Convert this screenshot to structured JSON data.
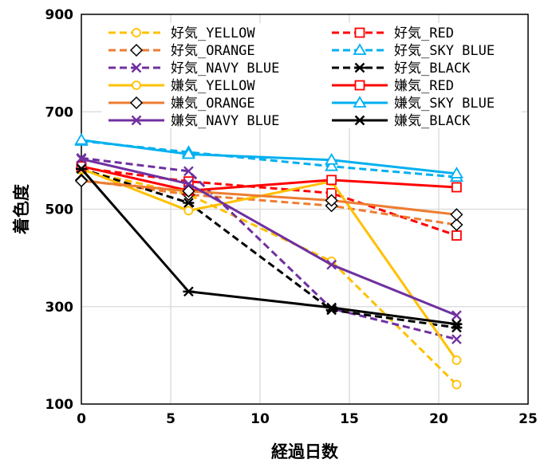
{
  "chart_data": {
    "type": "line",
    "title": "",
    "xlabel": "経過日数",
    "ylabel": "着色度",
    "xlim": [
      0,
      25
    ],
    "ylim": [
      100,
      900
    ],
    "x_ticks": [
      0,
      5,
      10,
      15,
      20,
      25
    ],
    "y_ticks": [
      100,
      300,
      500,
      700,
      900
    ],
    "grid": true,
    "legend_position": "top, inside plot, two columns",
    "x": [
      0,
      6,
      14,
      21
    ],
    "series": [
      {
        "name": "好気_YELLOW",
        "color": "#FFC000",
        "dash": true,
        "marker": "circle",
        "values": [
          580,
          530,
          393,
          140
        ]
      },
      {
        "name": "好気_RED",
        "color": "#FF0000",
        "dash": true,
        "marker": "square",
        "values": [
          585,
          557,
          533,
          446
        ]
      },
      {
        "name": "好気_ORANGE",
        "color": "#ED7D31",
        "dash": true,
        "marker": "diamond",
        "values": [
          560,
          530,
          507,
          468
        ]
      },
      {
        "name": "好気_SKY BLUE",
        "color": "#00B0F0",
        "dash": true,
        "marker": "triangle",
        "values": [
          640,
          617,
          588,
          566
        ]
      },
      {
        "name": "好気_NAVY BLUE",
        "color": "#7030A0",
        "dash": true,
        "marker": "x",
        "values": [
          605,
          578,
          296,
          233
        ]
      },
      {
        "name": "好気_BLACK",
        "color": "#000000",
        "dash": true,
        "marker": "star",
        "values": [
          583,
          513,
          293,
          257
        ]
      },
      {
        "name": "嫌気_YELLOW",
        "color": "#FFC000",
        "dash": false,
        "marker": "circle",
        "values": [
          583,
          497,
          557,
          190
        ]
      },
      {
        "name": "嫌気_RED",
        "color": "#FF0000",
        "dash": false,
        "marker": "square",
        "values": [
          588,
          538,
          560,
          545
        ]
      },
      {
        "name": "嫌気_ORANGE",
        "color": "#ED7D31",
        "dash": false,
        "marker": "diamond",
        "values": [
          558,
          537,
          518,
          489
        ]
      },
      {
        "name": "嫌気_SKY BLUE",
        "color": "#00B0F0",
        "dash": false,
        "marker": "triangle",
        "values": [
          642,
          613,
          601,
          573
        ]
      },
      {
        "name": "嫌気_NAVY BLUE",
        "color": "#7030A0",
        "dash": false,
        "marker": "x",
        "values": [
          603,
          552,
          386,
          282
        ]
      },
      {
        "name": "嫌気_BLACK",
        "color": "#000000",
        "dash": false,
        "marker": "star",
        "values": [
          583,
          331,
          298,
          264
        ]
      }
    ]
  }
}
